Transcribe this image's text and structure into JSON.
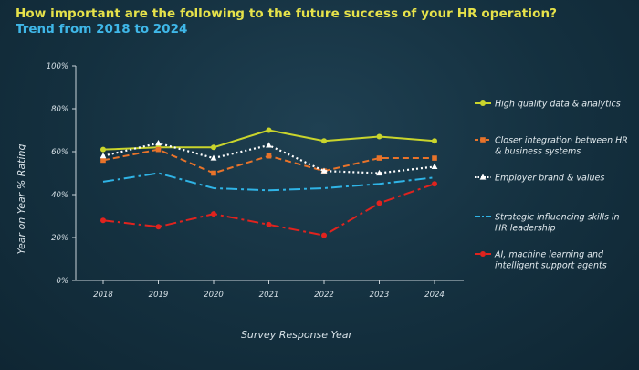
{
  "header": {
    "title": "How important are the following to the future success of your HR operation?",
    "subtitle": "Trend from 2018 to 2024"
  },
  "chart_data": {
    "type": "line",
    "title": "How important are the following to the future success of your HR operation?",
    "subtitle": "Trend from 2018 to 2024",
    "xlabel": "Survey Response Year",
    "ylabel": "Year on Year % Rating",
    "x": [
      "2018",
      "2019",
      "2020",
      "2021",
      "2022",
      "2023",
      "2024"
    ],
    "ylim": [
      0,
      100
    ],
    "yticks": [
      "0%",
      "20%",
      "40%",
      "60%",
      "80%",
      "100%"
    ],
    "ytick_values": [
      0,
      20,
      40,
      60,
      80,
      100
    ],
    "grid": false,
    "legend_position": "right",
    "series": [
      {
        "name": "High quality data & analytics",
        "legend_lines": [
          "High quality data & analytics"
        ],
        "values": [
          61,
          62,
          62,
          70,
          65,
          67,
          65
        ],
        "color": "#c9d42c",
        "style": "solid",
        "marker": "circle"
      },
      {
        "name": "Closer integration between HR & business systems",
        "legend_lines": [
          "Closer integration between HR",
          "& business systems"
        ],
        "values": [
          56,
          61,
          50,
          58,
          51,
          57,
          57
        ],
        "color": "#e8732a",
        "style": "dashed",
        "marker": "square"
      },
      {
        "name": "Employer brand & values",
        "legend_lines": [
          "Employer brand & values"
        ],
        "values": [
          58,
          64,
          57,
          63,
          51,
          50,
          53
        ],
        "color": "#ffffff",
        "style": "dotted",
        "marker": "triangle"
      },
      {
        "name": "Strategic influencing skills in HR leadership",
        "legend_lines": [
          "Strategic influencing skills in",
          "HR leadership"
        ],
        "values": [
          46,
          50,
          43,
          42,
          43,
          45,
          48
        ],
        "color": "#2fb4e6",
        "style": "dashdot",
        "marker": "none"
      },
      {
        "name": "AI, machine learning and intelligent support agents",
        "legend_lines": [
          "AI, machine learning and",
          "intelligent support agents"
        ],
        "values": [
          28,
          25,
          31,
          26,
          21,
          36,
          45
        ],
        "color": "#e0231e",
        "style": "dashdot",
        "marker": "circle"
      }
    ]
  }
}
